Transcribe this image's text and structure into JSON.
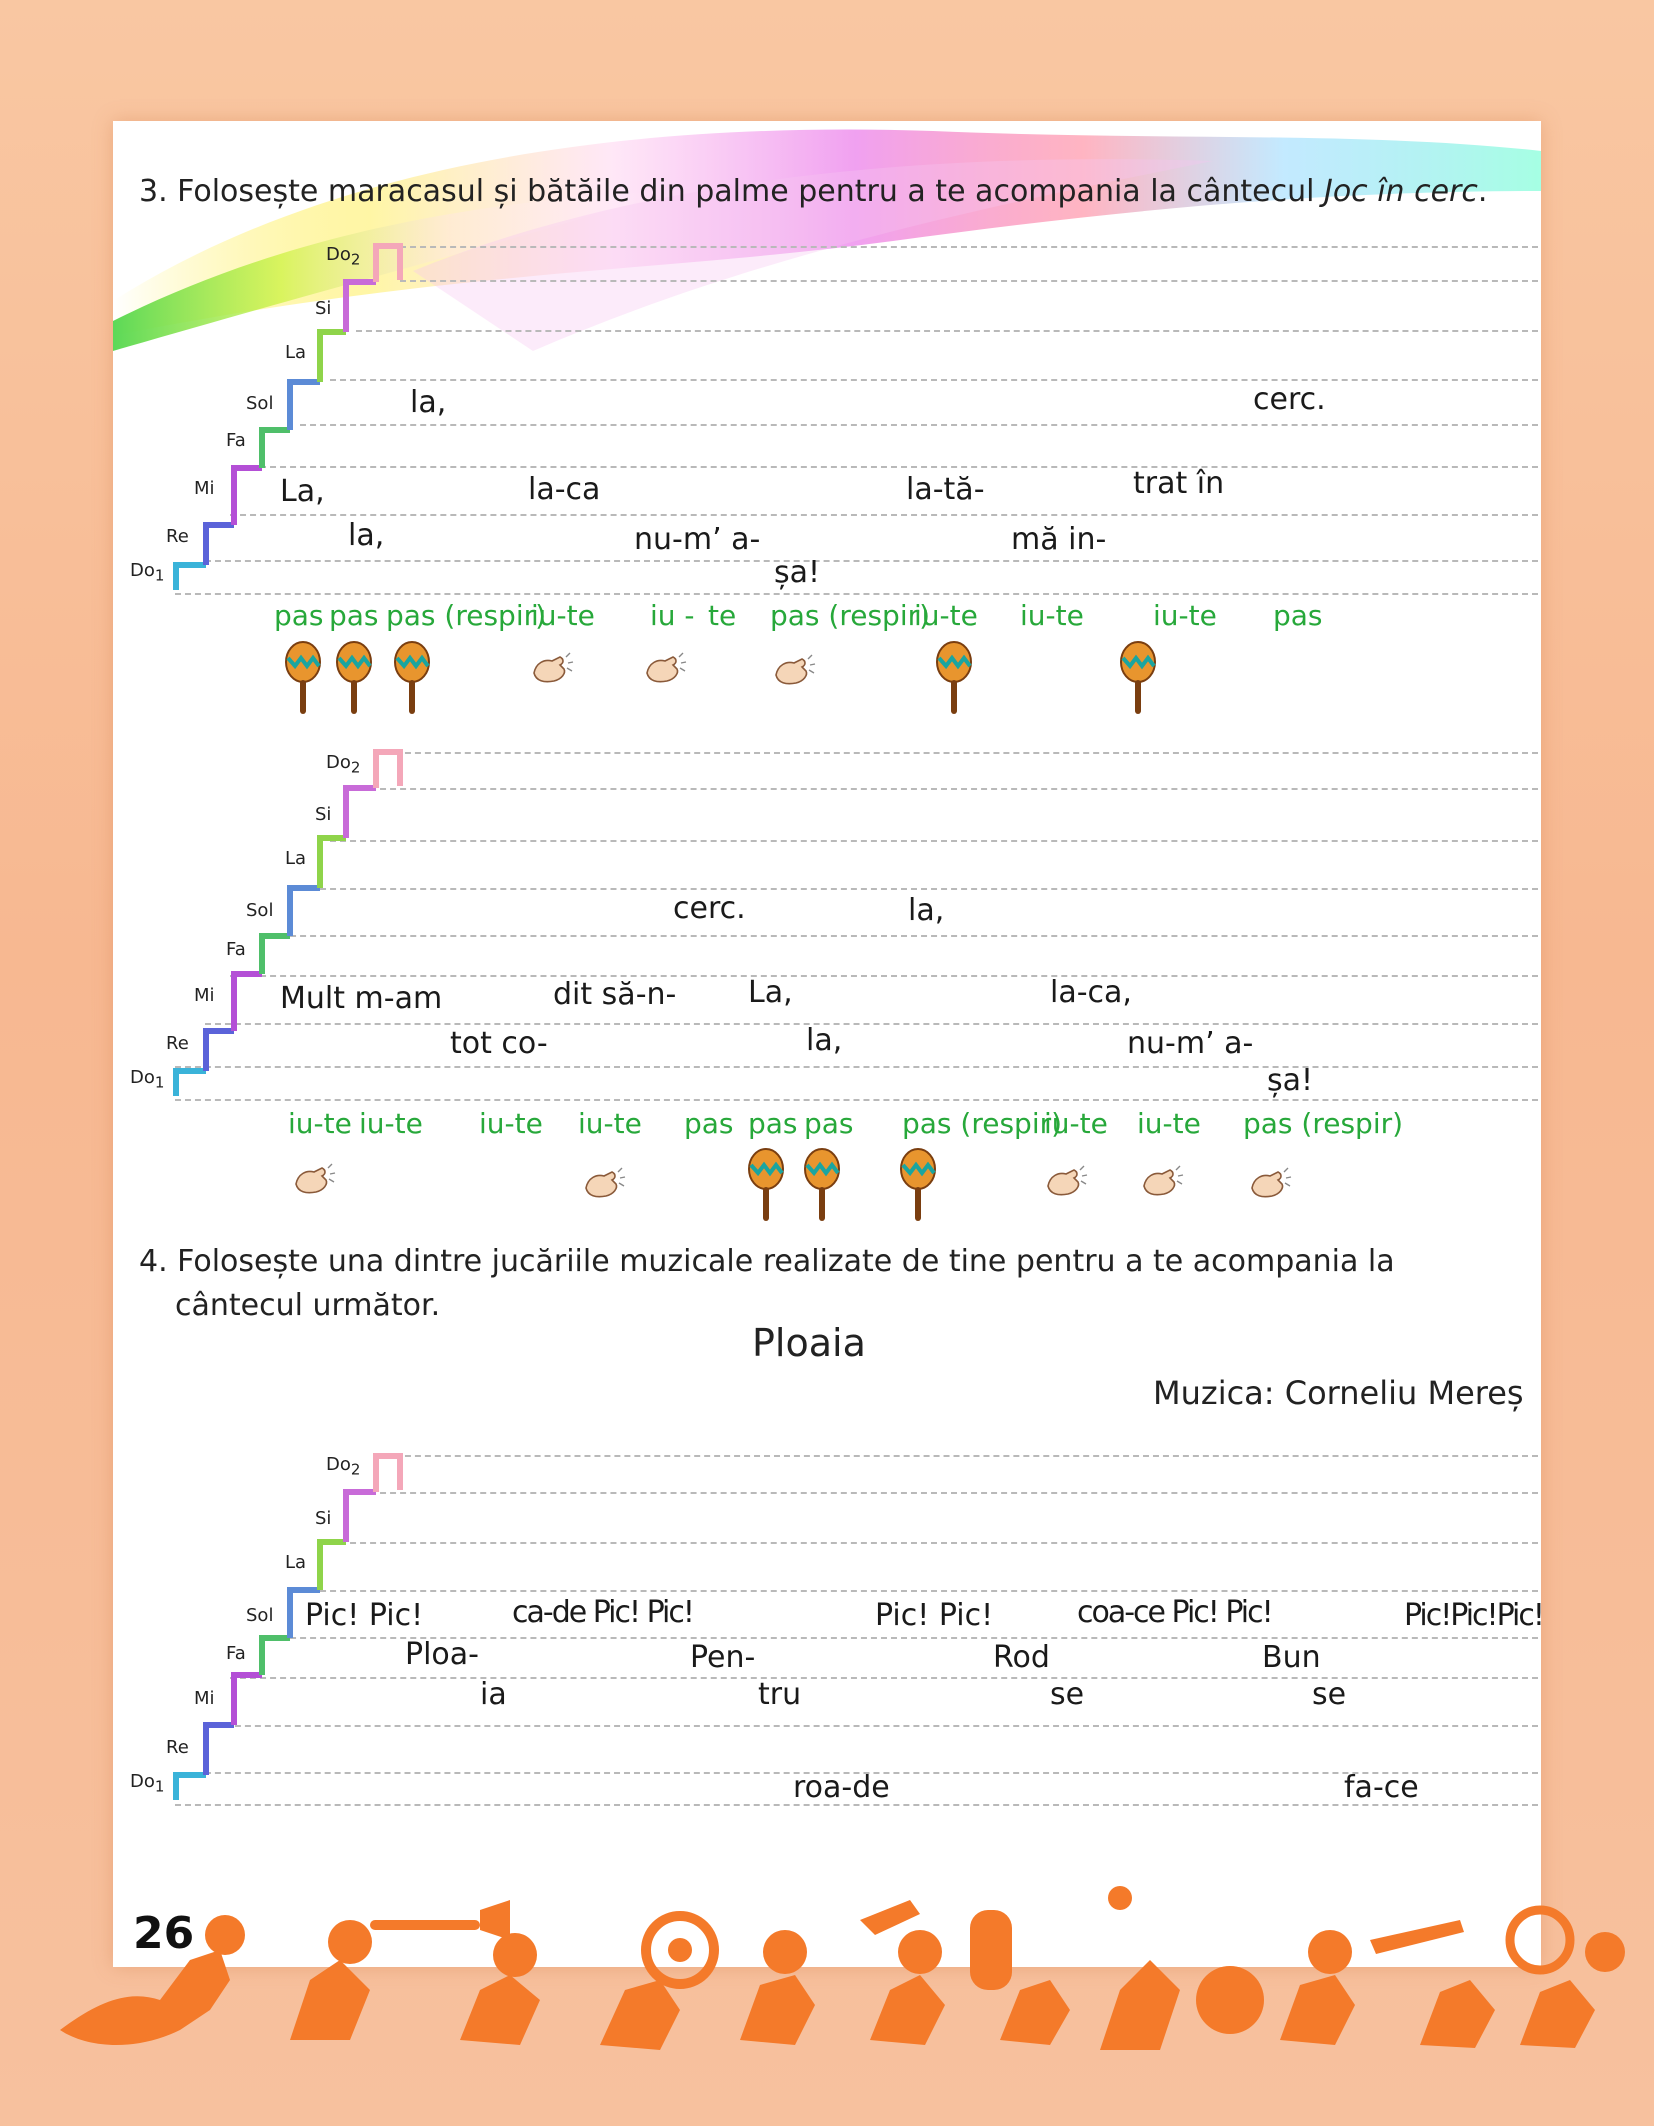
{
  "exercise3": {
    "instruction_prefix": "3. Folosește maracasul și bătăile din palme pentru a te acompania la cântecul ",
    "song_title": "Joc în cerc",
    "instruction_suffix": "."
  },
  "notes": {
    "do2": "Do",
    "do2_sub": "2",
    "si": "Si",
    "la": "La",
    "sol": "Sol",
    "fa": "Fa",
    "mi": "Mi",
    "re": "Re",
    "do1": "Do",
    "do1_sub": "1"
  },
  "staff1": {
    "lyrics": {
      "sol_la": "la,",
      "sol_cerc": "cerc.",
      "mi_La": "La,",
      "mi_laca": "la-ca",
      "mi_lata": "la-tă-",
      "mi_trat": "trat în",
      "re_la": "la,",
      "re_num": "nu-m’ a-",
      "re_ma": "mă in-",
      "do_sa": "șa!"
    },
    "steps": {
      "s1": "pas",
      "s2": "pas",
      "s3": "pas (respir)",
      "s4": "iu-te",
      "s5": "iu -",
      "s6": "te",
      "s7": "pas (respir)",
      "s8": "iu-te",
      "s9": "iu-te",
      "s10": "iu-te",
      "s11": "pas"
    },
    "icons": [
      "maracas-icon",
      "maracas-icon",
      "maracas-icon",
      "clap-icon",
      "clap-icon",
      "clap-icon",
      "maracas-icon",
      "maracas-icon"
    ]
  },
  "staff2": {
    "lyrics": {
      "sol_cerc": "cerc.",
      "sol_la": "la,",
      "mi_mult": "Mult m-am",
      "mi_dit": "dit să-n-",
      "mi_La": "La,",
      "mi_laca": "la-ca,",
      "re_tot": "tot co-",
      "re_la": "la,",
      "re_num": "nu-m’ a-",
      "do_sa": "șa!"
    },
    "steps": {
      "s1": "iu-te",
      "s2": "iu-te",
      "s3": "iu-te",
      "s4": "iu-te",
      "s5": "pas",
      "s6": "pas",
      "s7": "pas",
      "s8": "pas (respir)",
      "s9": "iu-te",
      "s10": "iu-te",
      "s11": "pas (respir)"
    },
    "icons": [
      "clap-icon",
      "clap-icon",
      "maracas-icon",
      "maracas-icon",
      "maracas-icon",
      "clap-icon",
      "clap-icon",
      "clap-icon"
    ]
  },
  "exercise4": {
    "line1": "4. Folosește una dintre jucăriile muzicale realizate de tine pentru a te acompania la",
    "line2": "cântecul următor.",
    "song_title": "Ploaia",
    "composer": "Muzica: Corneliu Mereș"
  },
  "staff3": {
    "lyrics": {
      "sol_pic1": "Pic! Pic!",
      "sol_cade": "ca-de Pic! Pic!",
      "sol_pic2": "Pic! Pic!",
      "sol_coace": "coa-ce Pic! Pic!",
      "sol_pic3": "Pic!Pic!Pic!",
      "fa_ploa": "Ploa-",
      "fa_pen": "Pen-",
      "fa_rod": "Rod",
      "fa_bun": "Bun",
      "mi_ia": "ia",
      "mi_tru": "tru",
      "mi_se1": "se",
      "mi_se2": "se",
      "do_roade": "roa-de",
      "do_face": "fa-ce"
    }
  },
  "page_number": "26",
  "colors": {
    "step_text": "#27a83a",
    "stair_do2": "#f4a7b9",
    "stair_si": "#c86bd8",
    "stair_la": "#8fd44a",
    "stair_sol": "#5c8bd6",
    "stair_fa": "#4fbf6a",
    "stair_mi": "#b44fd6",
    "stair_re": "#5b63d9",
    "stair_do1": "#3ab3d9",
    "border_orange": "#f47a2a"
  }
}
